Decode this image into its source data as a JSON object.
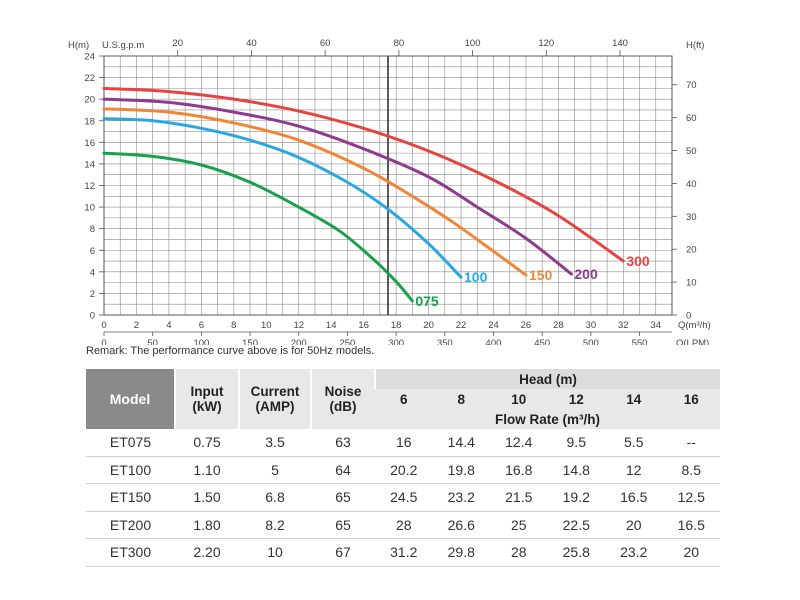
{
  "chart_data": {
    "type": "line",
    "xlabel": "Q(m³/h)",
    "xlabel2": "Q(LPM)",
    "ylabel": "H(m)",
    "ylabel2": "H(ft)",
    "top_axis_label": "U.S.g.p.m",
    "xlim": [
      0,
      35
    ],
    "ylim": [
      0,
      24
    ],
    "x_ticks": [
      "0",
      "2",
      "4",
      "6",
      "8",
      "10",
      "12",
      "14",
      "16",
      "18",
      "20",
      "22",
      "24",
      "26",
      "28",
      "30",
      "32",
      "34"
    ],
    "y_ticks": [
      "0",
      "2",
      "4",
      "6",
      "8",
      "10",
      "12",
      "14",
      "16",
      "18",
      "20",
      "22",
      "24"
    ],
    "top_ticks": [
      "20",
      "40",
      "60",
      "80",
      "100",
      "120",
      "140"
    ],
    "lpm_ticks": [
      "0",
      "50",
      "100",
      "150",
      "200",
      "250",
      "300",
      "350",
      "400",
      "450",
      "500",
      "550"
    ],
    "ft_ticks": [
      "0",
      "10",
      "20",
      "30",
      "40",
      "50",
      "60",
      "70"
    ],
    "grid": true,
    "series": [
      {
        "name": "075",
        "color": "#1aa04c",
        "x": [
          0,
          3,
          6,
          9,
          12,
          14.5,
          16.5,
          18,
          19
        ],
        "y": [
          15,
          14.7,
          13.9,
          12.3,
          10,
          7.8,
          5.3,
          3.1,
          1.3
        ]
      },
      {
        "name": "100",
        "color": "#2aa7e0",
        "x": [
          0,
          3,
          6,
          9,
          12,
          15,
          17.5,
          20,
          22
        ],
        "y": [
          18.2,
          18,
          17.3,
          16.2,
          14.6,
          12.3,
          9.8,
          6.6,
          3.5
        ]
      },
      {
        "name": "150",
        "color": "#f08536",
        "x": [
          0,
          4,
          8,
          12,
          16,
          19,
          21.5,
          24,
          26
        ],
        "y": [
          19.1,
          18.8,
          17.8,
          16.2,
          13.6,
          11,
          8.6,
          5.9,
          3.7
        ]
      },
      {
        "name": "200",
        "color": "#8e3a8e",
        "x": [
          0,
          4,
          8,
          12,
          16,
          20,
          23,
          26,
          28.8
        ],
        "y": [
          20,
          19.7,
          18.8,
          17.5,
          15.4,
          12.8,
          10,
          7.1,
          3.8
        ]
      },
      {
        "name": "300",
        "color": "#e64440",
        "x": [
          0,
          4,
          8,
          12,
          16,
          20,
          24,
          28,
          32
        ],
        "y": [
          21,
          20.7,
          20,
          18.9,
          17.3,
          15.2,
          12.5,
          9.2,
          5
        ]
      }
    ],
    "remark": "Remark: The performance curve above is for 50Hz models."
  },
  "table": {
    "model_header": "Model",
    "input_header": "Input (kW)",
    "current_header": "Current (AMP)",
    "noise_header": "Noise (dB)",
    "head_header": "Head (m)",
    "flow_header": "Flow Rate (m³/h)",
    "heads": [
      "6",
      "8",
      "10",
      "12",
      "14",
      "16"
    ],
    "rows": [
      {
        "model": "ET075",
        "input": "0.75",
        "current": "3.5",
        "noise": "63",
        "flows": [
          "16",
          "14.4",
          "12.4",
          "9.5",
          "5.5",
          "--"
        ]
      },
      {
        "model": "ET100",
        "input": "1.10",
        "current": "5",
        "noise": "64",
        "flows": [
          "20.2",
          "19.8",
          "16.8",
          "14.8",
          "12",
          "8.5"
        ]
      },
      {
        "model": "ET150",
        "input": "1.50",
        "current": "6.8",
        "noise": "65",
        "flows": [
          "24.5",
          "23.2",
          "21.5",
          "19.2",
          "16.5",
          "12.5"
        ]
      },
      {
        "model": "ET200",
        "input": "1.80",
        "current": "8.2",
        "noise": "65",
        "flows": [
          "28",
          "26.6",
          "25",
          "22.5",
          "20",
          "16.5"
        ]
      },
      {
        "model": "ET300",
        "input": "2.20",
        "current": "10",
        "noise": "67",
        "flows": [
          "31.2",
          "29.8",
          "28",
          "25.8",
          "23.2",
          "20"
        ]
      }
    ]
  }
}
